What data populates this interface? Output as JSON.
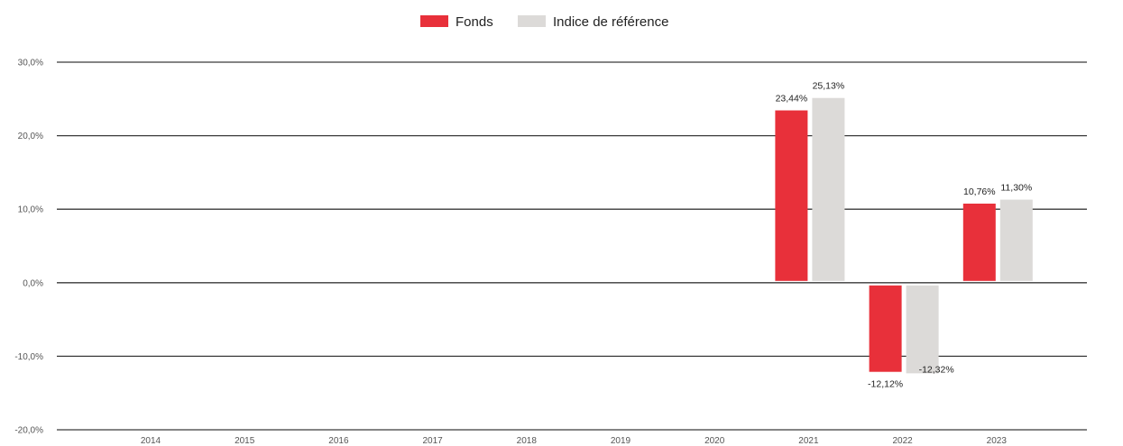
{
  "chart_data": {
    "type": "bar",
    "categories": [
      "2014",
      "2015",
      "2016",
      "2017",
      "2018",
      "2019",
      "2020",
      "2021",
      "2022",
      "2023"
    ],
    "series": [
      {
        "name": "Fonds",
        "color": "#e8303a",
        "values": [
          null,
          null,
          null,
          null,
          null,
          null,
          null,
          23.44,
          -12.12,
          10.76
        ],
        "labels": [
          "",
          "",
          "",
          "",
          "",
          "",
          "",
          "23,44%",
          "-12,12%",
          "10,76%"
        ]
      },
      {
        "name": "Indice de référence",
        "color": "#dcdad8",
        "values": [
          null,
          null,
          null,
          null,
          null,
          null,
          null,
          25.13,
          -12.32,
          11.3
        ],
        "labels": [
          "",
          "",
          "",
          "",
          "",
          "",
          "",
          "25,13%",
          "-12,32%",
          "11,30%"
        ]
      }
    ],
    "y_ticks": [
      30,
      20,
      10,
      0,
      -10,
      -20
    ],
    "y_tick_labels": [
      "30,0%",
      "20,0%",
      "10,0%",
      "0,0%",
      "-10,0%",
      "-20,0%"
    ],
    "ylim": [
      -20,
      30
    ],
    "grid": true,
    "legend_position": "top-center",
    "title": "",
    "xlabel": "",
    "ylabel": ""
  }
}
